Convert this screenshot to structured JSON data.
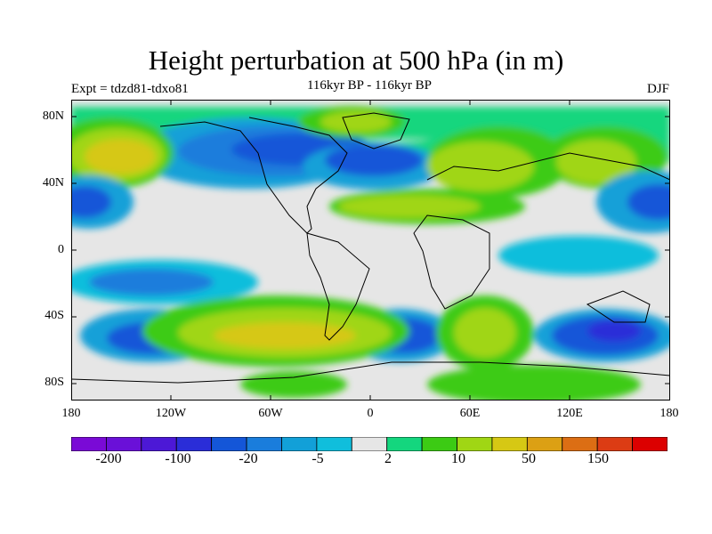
{
  "title": "Height perturbation at 500 hPa (in m)",
  "subtitle": "116kyr BP - 116kyr BP",
  "expt_label": "Expt = tdzd81-tdxo81",
  "season_label": "DJF",
  "map": {
    "projection": "cylindrical equidistant",
    "lon_range": [
      -180,
      180
    ],
    "lat_range": [
      -90,
      90
    ],
    "y_ticks": [
      "80N",
      "40N",
      "0",
      "40S",
      "80S"
    ],
    "x_ticks": [
      "180",
      "120W",
      "60W",
      "0",
      "60E",
      "120E",
      "180"
    ],
    "coastlines": true
  },
  "colorbar": {
    "colors": [
      "#7a0ad6",
      "#6a10d8",
      "#4c18d6",
      "#2a2dd8",
      "#1456d8",
      "#1a7ddc",
      "#12a0d8",
      "#10bedc",
      "#e6e6e6",
      "#14d67e",
      "#3ccb14",
      "#a0d614",
      "#d6c814",
      "#dca014",
      "#dc6e14",
      "#dc3c14",
      "#dc0000"
    ],
    "labels": [
      "-200",
      "-100",
      "-20",
      "-5",
      "2",
      "10",
      "50",
      "150"
    ]
  }
}
